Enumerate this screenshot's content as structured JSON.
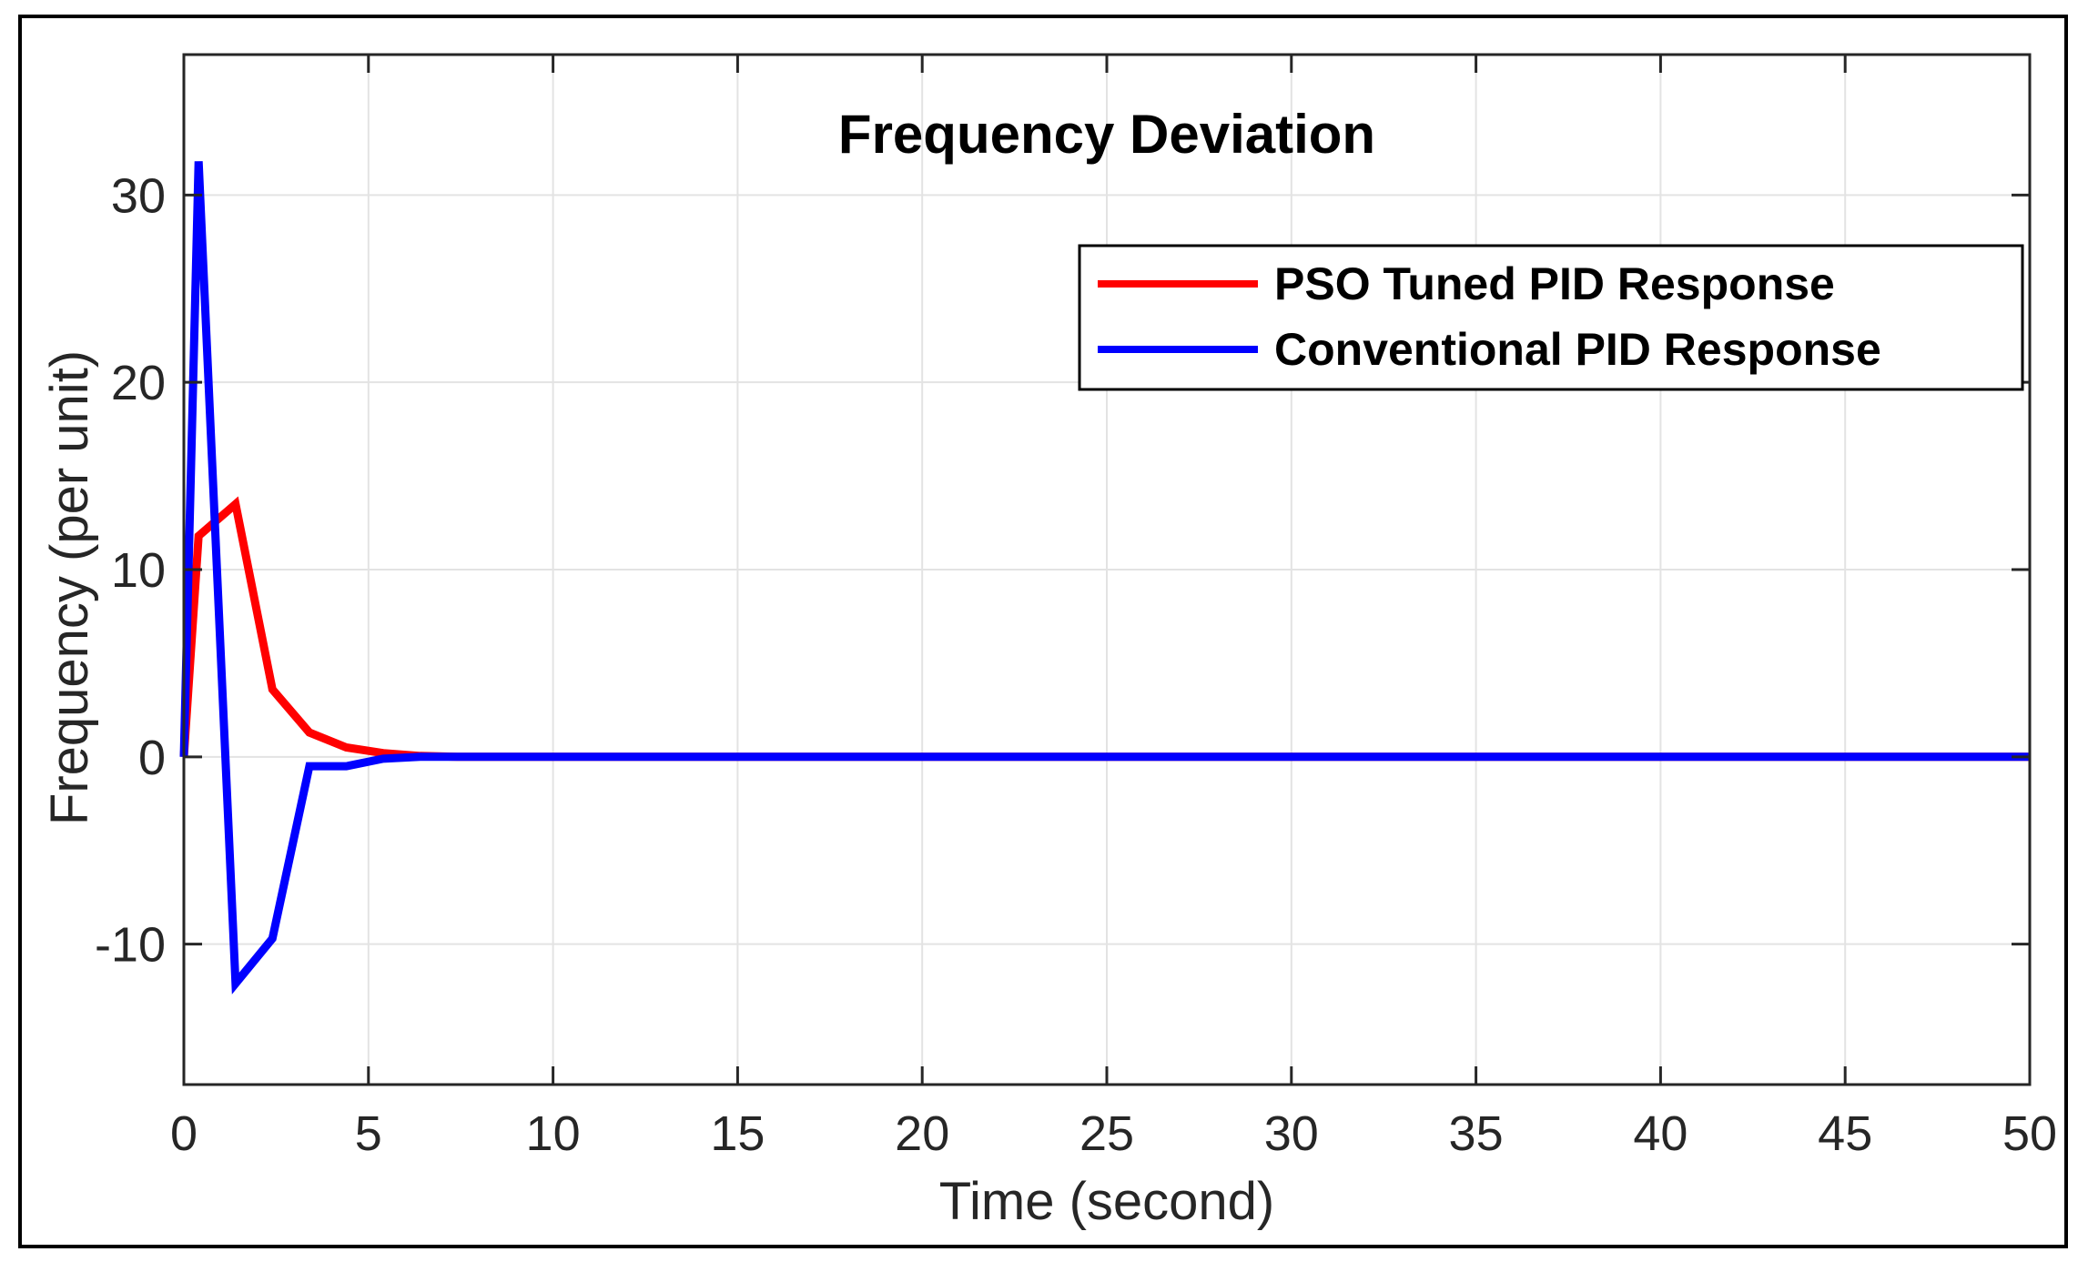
{
  "chart_data": {
    "type": "line",
    "title": "Frequency Deviation",
    "xlabel": "Time (second)",
    "ylabel": "Frequency (per unit)",
    "xlim": [
      0,
      50
    ],
    "ylim": [
      -17.5,
      37.5
    ],
    "xticks": [
      0,
      5,
      10,
      15,
      20,
      25,
      30,
      35,
      40,
      45,
      50
    ],
    "yticks": [
      -10,
      0,
      10,
      20,
      30
    ],
    "grid": true,
    "legend_position": "top-right",
    "series": [
      {
        "name": "PSO Tuned PID Response",
        "color": "#ff0000",
        "x": [
          0,
          0.4,
          1.4,
          2.4,
          3.4,
          4.4,
          5.4,
          6.4,
          7.4,
          8.4,
          50
        ],
        "y": [
          0,
          11.8,
          13.5,
          3.6,
          1.3,
          0.5,
          0.2,
          0.05,
          0,
          0,
          0
        ]
      },
      {
        "name": "Conventional PID Response",
        "color": "#0000ff",
        "x": [
          0,
          0.4,
          1.4,
          2.4,
          3.4,
          4.4,
          5.4,
          6.4,
          7.4,
          50
        ],
        "y": [
          0,
          31.8,
          -12.1,
          -9.7,
          -0.5,
          -0.5,
          -0.1,
          0,
          0,
          0
        ]
      }
    ]
  }
}
